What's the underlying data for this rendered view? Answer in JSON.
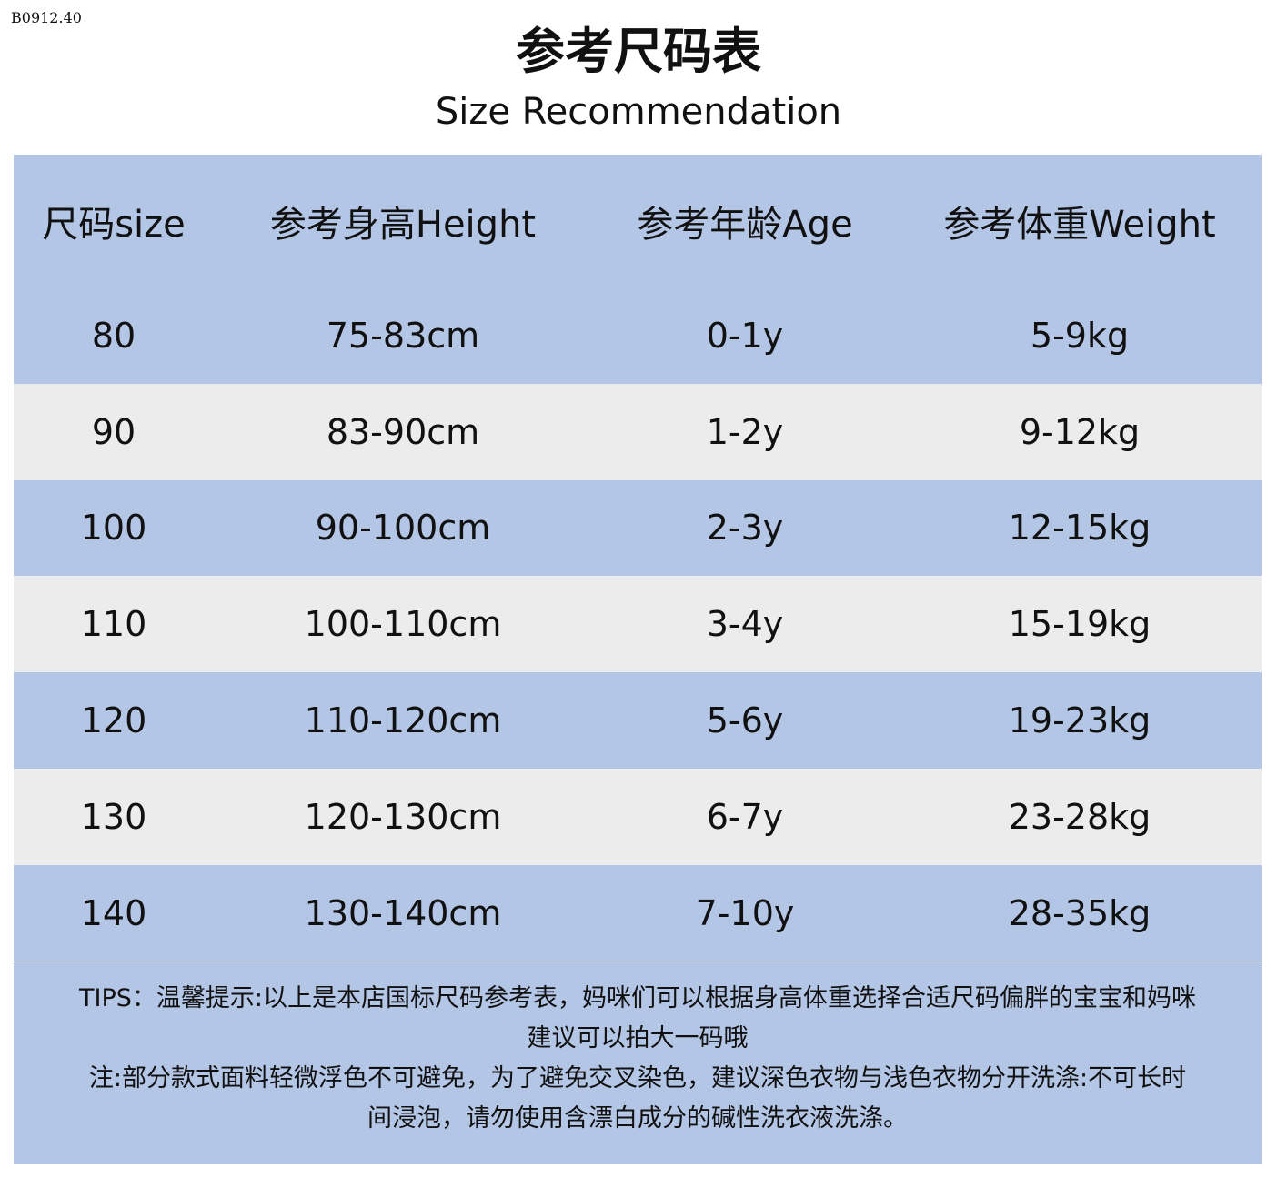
{
  "code": "B0912.40",
  "title": "参考尺码表",
  "subtitle": "Size Recommendation",
  "colors": {
    "blue_row": "#b4c6e6",
    "grey_row": "#ececec"
  },
  "table": {
    "headers": [
      "尺码size",
      "参考身高Height",
      "参考年龄Age",
      "参考体重Weight"
    ],
    "rows": [
      [
        "80",
        "75-83cm",
        "0-1y",
        "5-9kg"
      ],
      [
        "90",
        "83-90cm",
        "1-2y",
        "9-12kg"
      ],
      [
        "100",
        "90-100cm",
        "2-3y",
        "12-15kg"
      ],
      [
        "110",
        "100-110cm",
        "3-4y",
        "15-19kg"
      ],
      [
        "120",
        "110-120cm",
        "5-6y",
        "19-23kg"
      ],
      [
        "130",
        "120-130cm",
        "6-7y",
        "23-28kg"
      ],
      [
        "140",
        "130-140cm",
        "7-10y",
        "28-35kg"
      ]
    ]
  },
  "tips": {
    "line1": "TIPS：温馨提示:以上是本店国标尺码参考表，妈咪们可以根据身高体重选择合适尺码偏胖的宝宝和妈咪",
    "line2": "建议可以拍大一码哦",
    "line3": "注:部分款式面料轻微浮色不可避免，为了避免交叉染色，建议深色衣物与浅色衣物分开洗涤:不可长时",
    "line4": "间浸泡，请勿使用含漂白成分的碱性洗衣液洗涤。"
  }
}
